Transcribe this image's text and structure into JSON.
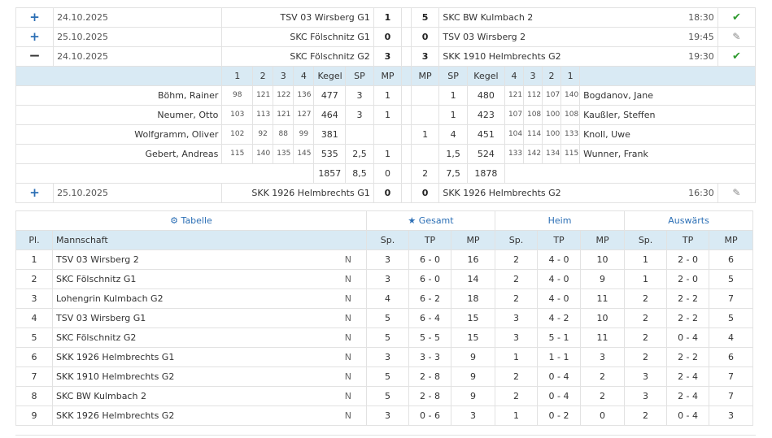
{
  "matches": [
    {
      "icon": "+",
      "date": "24.10.2025",
      "home": "TSV 03 Wirsberg G1",
      "hs": "1",
      "as": "5",
      "away": "SKC BW Kulmbach 2",
      "time": "18:30",
      "status": "✔",
      "status_icon": "check-icon"
    },
    {
      "icon": "+",
      "date": "25.10.2025",
      "home": "SKC Fölschnitz G1",
      "hs": "0",
      "as": "0",
      "away": "TSV 03 Wirsberg 2",
      "time": "19:45",
      "status": "✎",
      "status_icon": "pencil-icon"
    },
    {
      "icon": "−",
      "date": "24.10.2025",
      "home": "SKC Fölschnitz G2",
      "hs": "3",
      "as": "3",
      "away": "SKK 1910 Helmbrechts G2",
      "time": "19:30",
      "status": "✔",
      "status_icon": "check-icon"
    },
    {
      "icon": "+",
      "date": "25.10.2025",
      "home": "SKK 1926 Helmbrechts G1",
      "hs": "0",
      "as": "0",
      "away": "SKK 1926 Helmbrechts G2",
      "time": "16:30",
      "status": "✎",
      "status_icon": "pencil-icon"
    }
  ],
  "detail": {
    "headers": {
      "h1": "1",
      "h2": "2",
      "h3": "3",
      "h4": "4",
      "kegel": "Kegel",
      "sp": "SP",
      "mp": "MP"
    },
    "rows": [
      {
        "hname": "Böhm, Rainer",
        "h": [
          "98",
          "121",
          "122",
          "136"
        ],
        "hk": "477",
        "hsp": "3",
        "hmp": "1",
        "amp": "",
        "asp": "1",
        "ak": "480",
        "a": [
          "121",
          "112",
          "107",
          "140"
        ],
        "aname": "Bogdanov, Jane"
      },
      {
        "hname": "Neumer, Otto",
        "h": [
          "103",
          "113",
          "121",
          "127"
        ],
        "hk": "464",
        "hsp": "3",
        "hmp": "1",
        "amp": "",
        "asp": "1",
        "ak": "423",
        "a": [
          "107",
          "108",
          "100",
          "108"
        ],
        "aname": "Kaußler, Steffen"
      },
      {
        "hname": "Wolfgramm, Oliver",
        "h": [
          "102",
          "92",
          "88",
          "99"
        ],
        "hk": "381",
        "hsp": "",
        "hmp": "",
        "amp": "1",
        "asp": "4",
        "ak": "451",
        "a": [
          "104",
          "114",
          "100",
          "133"
        ],
        "aname": "Knoll, Uwe"
      },
      {
        "hname": "Gebert, Andreas",
        "h": [
          "115",
          "140",
          "135",
          "145"
        ],
        "hk": "535",
        "hsp": "2,5",
        "hmp": "1",
        "amp": "",
        "asp": "1,5",
        "ak": "524",
        "a": [
          "133",
          "142",
          "134",
          "115"
        ],
        "aname": "Wunner, Frank"
      }
    ],
    "totals": {
      "hk": "1857",
      "hsp": "8,5",
      "hmp": "0",
      "amp": "2",
      "asp": "7,5",
      "ak": "1878"
    }
  },
  "standings": {
    "tabelle": "Tabelle",
    "tabelle_icon": "gear-icon",
    "gesamt": "Gesamt",
    "gesamt_icon": "star-icon",
    "heim": "Heim",
    "auswaerts": "Auswärts",
    "cols": {
      "pl": "Pl.",
      "team": "Mannschaft",
      "sp": "Sp.",
      "tp": "TP",
      "mp": "MP"
    },
    "rows": [
      {
        "pl": "1",
        "team": "TSV 03 Wirsberg 2",
        "n": "N",
        "g": [
          "3",
          "6 - 0",
          "16"
        ],
        "h": [
          "2",
          "4 - 0",
          "10"
        ],
        "a": [
          "1",
          "2 - 0",
          "6"
        ]
      },
      {
        "pl": "2",
        "team": "SKC Fölschnitz G1",
        "n": "N",
        "g": [
          "3",
          "6 - 0",
          "14"
        ],
        "h": [
          "2",
          "4 - 0",
          "9"
        ],
        "a": [
          "1",
          "2 - 0",
          "5"
        ]
      },
      {
        "pl": "3",
        "team": "Lohengrin Kulmbach G2",
        "n": "N",
        "g": [
          "4",
          "6 - 2",
          "18"
        ],
        "h": [
          "2",
          "4 - 0",
          "11"
        ],
        "a": [
          "2",
          "2 - 2",
          "7"
        ]
      },
      {
        "pl": "4",
        "team": "TSV 03 Wirsberg G1",
        "n": "N",
        "g": [
          "5",
          "6 - 4",
          "15"
        ],
        "h": [
          "3",
          "4 - 2",
          "10"
        ],
        "a": [
          "2",
          "2 - 2",
          "5"
        ]
      },
      {
        "pl": "5",
        "team": "SKC Fölschnitz G2",
        "n": "N",
        "g": [
          "5",
          "5 - 5",
          "15"
        ],
        "h": [
          "3",
          "5 - 1",
          "11"
        ],
        "a": [
          "2",
          "0 - 4",
          "4"
        ]
      },
      {
        "pl": "6",
        "team": "SKK 1926 Helmbrechts G1",
        "n": "N",
        "g": [
          "3",
          "3 - 3",
          "9"
        ],
        "h": [
          "1",
          "1 - 1",
          "3"
        ],
        "a": [
          "2",
          "2 - 2",
          "6"
        ]
      },
      {
        "pl": "7",
        "team": "SKK 1910 Helmbrechts G2",
        "n": "N",
        "g": [
          "5",
          "2 - 8",
          "9"
        ],
        "h": [
          "2",
          "0 - 4",
          "2"
        ],
        "a": [
          "3",
          "2 - 4",
          "7"
        ]
      },
      {
        "pl": "8",
        "team": "SKC BW Kulmbach 2",
        "n": "N",
        "g": [
          "5",
          "2 - 8",
          "9"
        ],
        "h": [
          "2",
          "0 - 4",
          "2"
        ],
        "a": [
          "3",
          "2 - 4",
          "7"
        ]
      },
      {
        "pl": "9",
        "team": "SKK 1926 Helmbrechts G2",
        "n": "N",
        "g": [
          "3",
          "0 - 6",
          "3"
        ],
        "h": [
          "1",
          "0 - 2",
          "0"
        ],
        "a": [
          "2",
          "0 - 4",
          "3"
        ]
      }
    ]
  }
}
